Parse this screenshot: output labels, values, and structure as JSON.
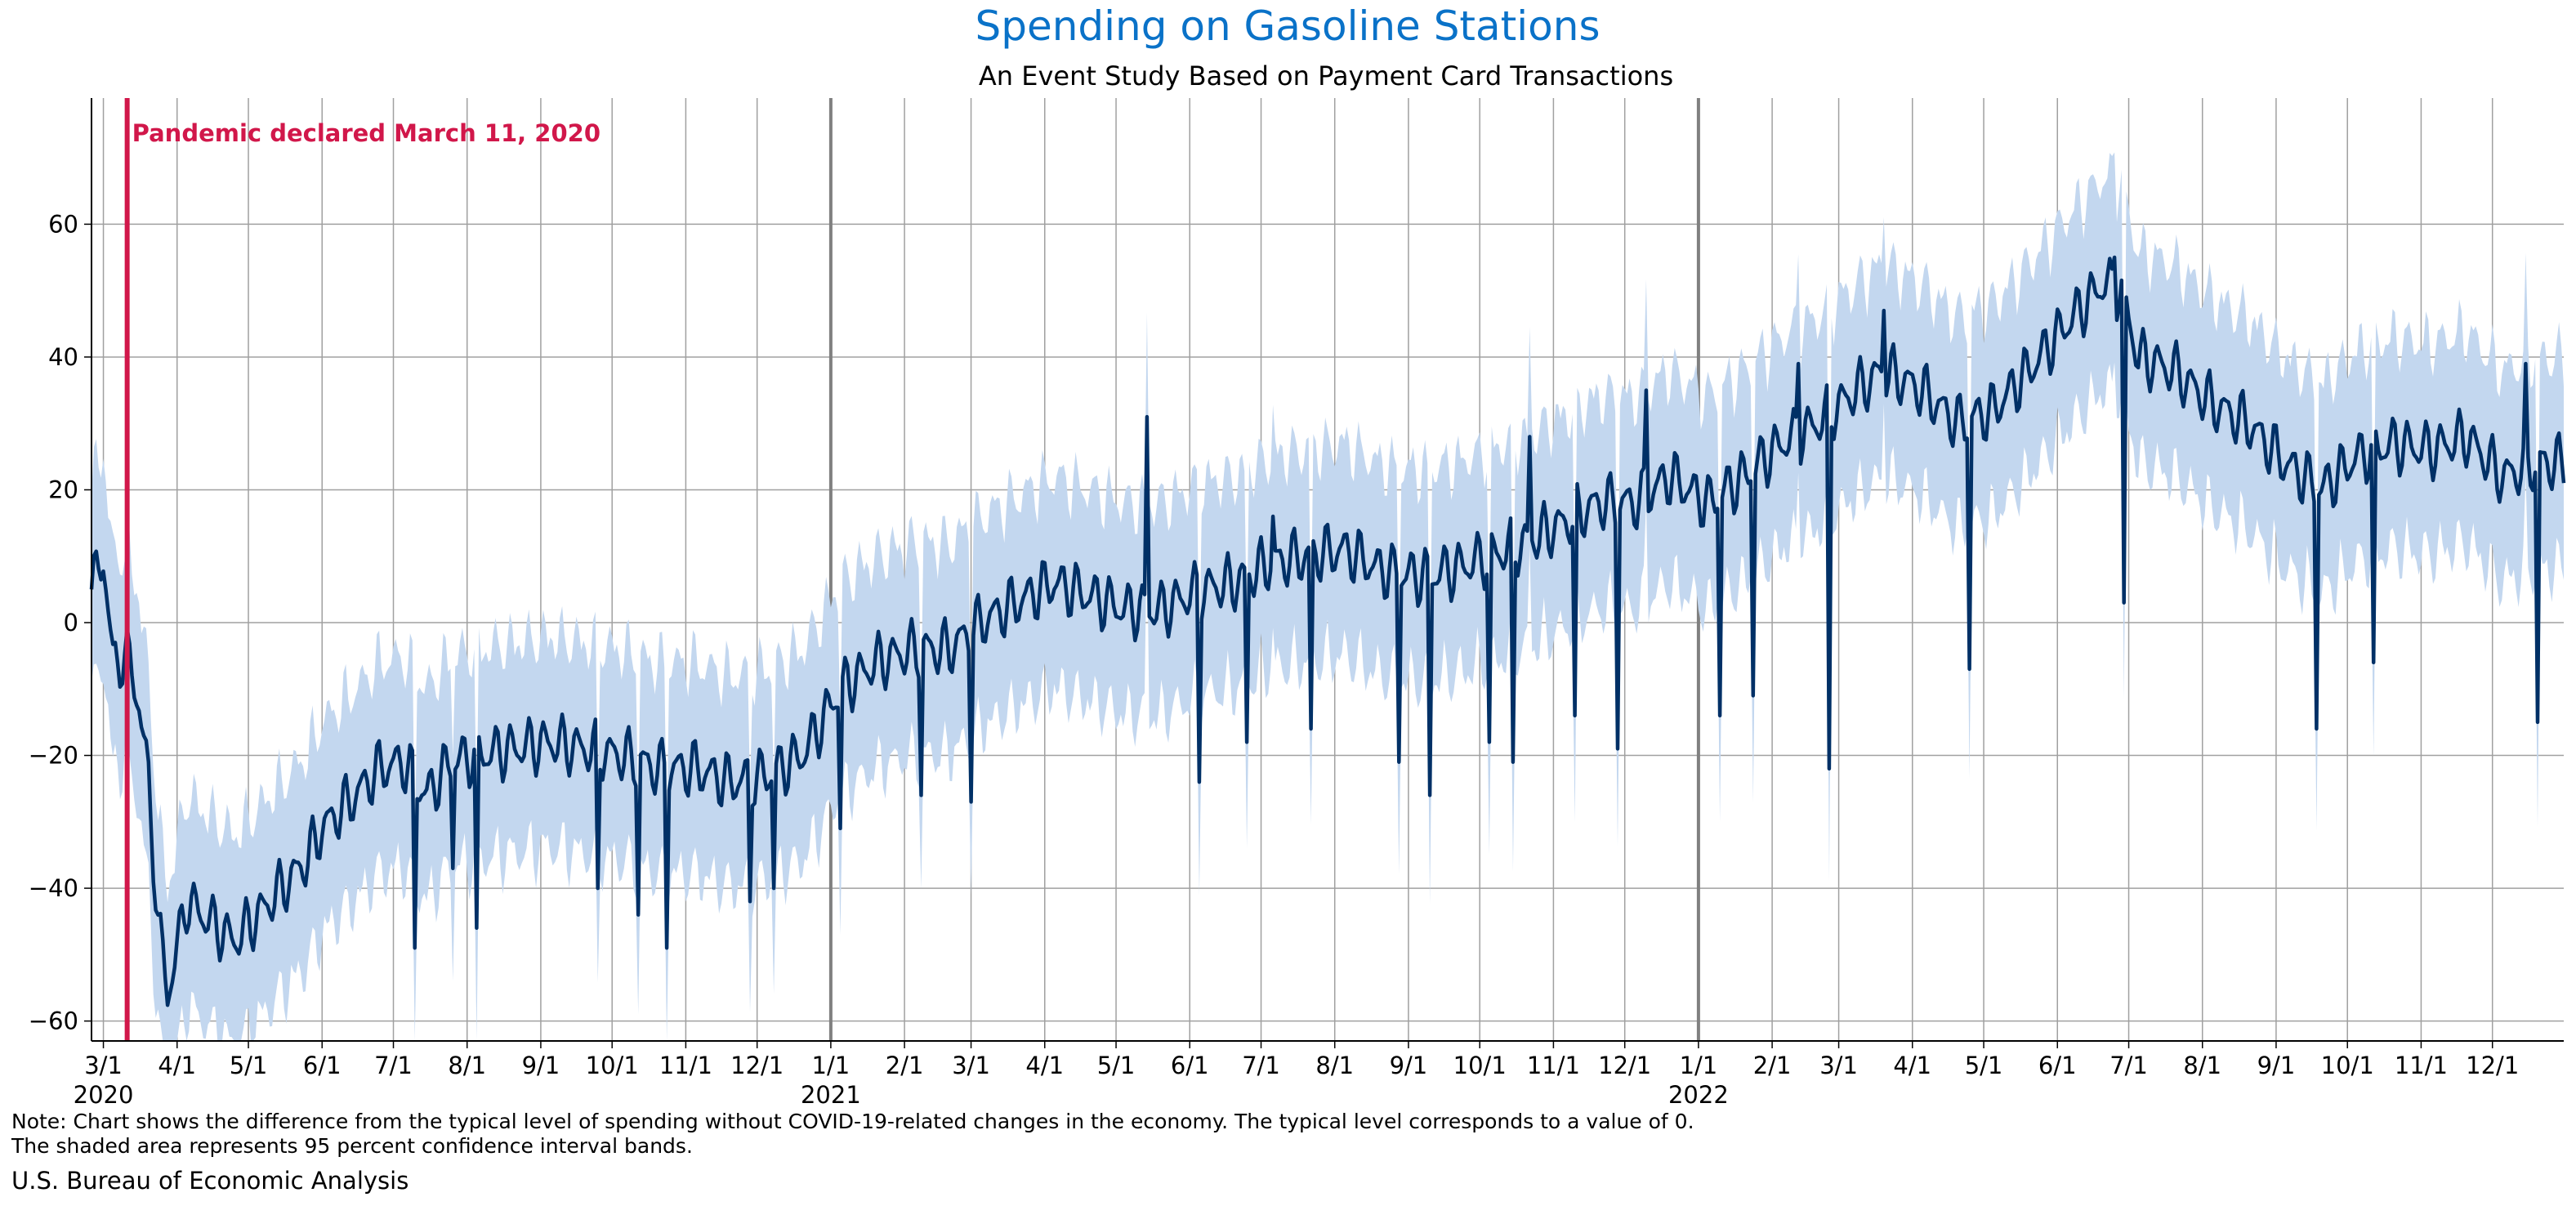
{
  "colors": {
    "title": "#0a72c8",
    "line": "#003066",
    "band": "#c3d7ef",
    "event": "#d1174a",
    "grid": "#a0a0a0",
    "year_line": "#808080"
  },
  "footer": {
    "note_line1": "Note: Chart shows the difference from the typical level of spending without COVID-19-related changes in the economy. The typical level corresponds to a value of 0.",
    "note_line2": "The shaded area represents 95 percent confidence interval bands.",
    "source": "U.S. Bureau of Economic Analysis"
  },
  "chart_data": {
    "type": "line",
    "title": "Spending on Gasoline Stations",
    "subtitle": "An Event Study Based on Payment Card Transactions",
    "xlabel": "",
    "ylabel": "",
    "x_range": [
      "2020-02-25",
      "2022-12-31"
    ],
    "ylim": [
      -63,
      79
    ],
    "yticks": [
      -60,
      -40,
      -20,
      0,
      20,
      40,
      60
    ],
    "grid": true,
    "x_tick_labels": [
      "3/1",
      "4/1",
      "5/1",
      "6/1",
      "7/1",
      "8/1",
      "9/1",
      "10/1",
      "11/1",
      "12/1",
      "1/1",
      "2/1",
      "3/1",
      "4/1",
      "5/1",
      "6/1",
      "7/1",
      "8/1",
      "9/1",
      "10/1",
      "11/1",
      "12/1",
      "1/1",
      "2/1",
      "3/1",
      "4/1",
      "5/1",
      "6/1",
      "7/1",
      "8/1",
      "9/1",
      "10/1",
      "11/1",
      "12/1"
    ],
    "x_tick_dates": [
      "2020-03-01",
      "2020-04-01",
      "2020-05-01",
      "2020-06-01",
      "2020-07-01",
      "2020-08-01",
      "2020-09-01",
      "2020-10-01",
      "2020-11-01",
      "2020-12-01",
      "2021-01-01",
      "2021-02-01",
      "2021-03-01",
      "2021-04-01",
      "2021-05-01",
      "2021-06-01",
      "2021-07-01",
      "2021-08-01",
      "2021-09-01",
      "2021-10-01",
      "2021-11-01",
      "2021-12-01",
      "2022-01-01",
      "2022-02-01",
      "2022-03-01",
      "2022-04-01",
      "2022-05-01",
      "2022-06-01",
      "2022-07-01",
      "2022-08-01",
      "2022-09-01",
      "2022-10-01",
      "2022-11-01",
      "2022-12-01"
    ],
    "year_labels": [
      {
        "label": "2020",
        "date": "2020-03-01"
      },
      {
        "label": "2021",
        "date": "2021-01-01"
      },
      {
        "label": "2022",
        "date": "2022-01-01"
      }
    ],
    "event": {
      "date": "2020-03-11",
      "label": "Pandemic declared March 11, 2020"
    },
    "band_halfwidth_approx": 14,
    "series": [
      {
        "name": "",
        "points": [
          [
            "2020-02-25",
            5
          ],
          [
            "2020-03-01",
            10
          ],
          [
            "2020-03-05",
            -6
          ],
          [
            "2020-03-11",
            -5
          ],
          [
            "2020-03-16",
            -12
          ],
          [
            "2020-03-20",
            -24
          ],
          [
            "2020-03-24",
            -45
          ],
          [
            "2020-03-28",
            -56
          ],
          [
            "2020-04-05",
            -42
          ],
          [
            "2020-04-15",
            -45
          ],
          [
            "2020-04-25",
            -48
          ],
          [
            "2020-05-05",
            -44
          ],
          [
            "2020-05-15",
            -40
          ],
          [
            "2020-05-25",
            -36
          ],
          [
            "2020-06-01",
            -31
          ],
          [
            "2020-06-15",
            -26
          ],
          [
            "2020-06-25",
            -22
          ],
          [
            "2020-07-05",
            -21
          ],
          [
            "2020-07-15",
            -26
          ],
          [
            "2020-07-25",
            -21
          ],
          [
            "2020-08-05",
            -20
          ],
          [
            "2020-08-20",
            -19
          ],
          [
            "2020-09-05",
            -18
          ],
          [
            "2020-09-20",
            -19
          ],
          [
            "2020-10-05",
            -20
          ],
          [
            "2020-10-20",
            -22
          ],
          [
            "2020-11-05",
            -22
          ],
          [
            "2020-11-20",
            -24
          ],
          [
            "2020-12-05",
            -23
          ],
          [
            "2020-12-20",
            -20
          ],
          [
            "2021-01-05",
            -10
          ],
          [
            "2021-01-20",
            -6
          ],
          [
            "2021-02-05",
            -4
          ],
          [
            "2021-02-20",
            -4
          ],
          [
            "2021-03-05",
            0
          ],
          [
            "2021-03-20",
            3
          ],
          [
            "2021-04-05",
            6
          ],
          [
            "2021-04-20",
            4
          ],
          [
            "2021-05-05",
            2
          ],
          [
            "2021-05-20",
            2
          ],
          [
            "2021-06-05",
            5
          ],
          [
            "2021-06-20",
            6
          ],
          [
            "2021-07-05",
            9
          ],
          [
            "2021-07-20",
            10
          ],
          [
            "2021-08-05",
            11
          ],
          [
            "2021-08-20",
            8
          ],
          [
            "2021-09-05",
            7
          ],
          [
            "2021-09-20",
            8
          ],
          [
            "2021-10-05",
            10
          ],
          [
            "2021-10-20",
            12
          ],
          [
            "2021-11-05",
            15
          ],
          [
            "2021-11-20",
            18
          ],
          [
            "2021-12-05",
            18
          ],
          [
            "2021-12-20",
            22
          ],
          [
            "2022-01-05",
            18
          ],
          [
            "2022-01-20",
            22
          ],
          [
            "2022-02-05",
            27
          ],
          [
            "2022-02-20",
            30
          ],
          [
            "2022-03-05",
            34
          ],
          [
            "2022-03-20",
            38
          ],
          [
            "2022-04-05",
            35
          ],
          [
            "2022-04-20",
            30
          ],
          [
            "2022-05-05",
            32
          ],
          [
            "2022-05-20",
            38
          ],
          [
            "2022-06-05",
            45
          ],
          [
            "2022-06-20",
            51
          ],
          [
            "2022-06-28",
            50
          ],
          [
            "2022-07-05",
            40
          ],
          [
            "2022-07-20",
            38
          ],
          [
            "2022-08-05",
            33
          ],
          [
            "2022-08-20",
            30
          ],
          [
            "2022-09-05",
            24
          ],
          [
            "2022-09-20",
            20
          ],
          [
            "2022-10-05",
            25
          ],
          [
            "2022-10-20",
            27
          ],
          [
            "2022-11-05",
            26
          ],
          [
            "2022-11-20",
            28
          ],
          [
            "2022-12-05",
            22
          ],
          [
            "2022-12-20",
            24
          ],
          [
            "2022-12-31",
            24
          ]
        ]
      }
    ],
    "dips": [
      [
        "2020-07-10",
        -49
      ],
      [
        "2020-07-26",
        -37
      ],
      [
        "2020-08-05",
        -46
      ],
      [
        "2020-09-25",
        -40
      ],
      [
        "2020-10-12",
        -44
      ],
      [
        "2020-10-24",
        -49
      ],
      [
        "2020-11-28",
        -42
      ],
      [
        "2020-12-08",
        -40
      ],
      [
        "2021-01-05",
        -31
      ],
      [
        "2021-02-08",
        -26
      ],
      [
        "2021-03-01",
        -27
      ],
      [
        "2021-06-05",
        -24
      ],
      [
        "2021-06-25",
        -18
      ],
      [
        "2021-07-22",
        -16
      ],
      [
        "2021-08-28",
        -21
      ],
      [
        "2021-09-10",
        -26
      ],
      [
        "2021-10-05",
        -18
      ],
      [
        "2021-10-15",
        -21
      ],
      [
        "2021-11-10",
        -14
      ],
      [
        "2021-11-28",
        -19
      ],
      [
        "2021-12-10",
        -16
      ],
      [
        "2022-01-10",
        -14
      ],
      [
        "2022-01-24",
        -11
      ],
      [
        "2022-02-25",
        -22
      ],
      [
        "2022-04-25",
        -7
      ],
      [
        "2022-06-29",
        3
      ],
      [
        "2022-09-18",
        -16
      ],
      [
        "2022-10-12",
        -6
      ],
      [
        "2022-12-20",
        -15
      ]
    ],
    "spikes": [
      [
        "2021-05-14",
        31
      ],
      [
        "2021-07-06",
        16
      ],
      [
        "2021-10-22",
        28
      ],
      [
        "2021-12-10",
        35
      ],
      [
        "2022-02-12",
        39
      ],
      [
        "2022-03-20",
        47
      ],
      [
        "2022-06-25",
        55
      ],
      [
        "2022-12-15",
        39
      ]
    ]
  }
}
